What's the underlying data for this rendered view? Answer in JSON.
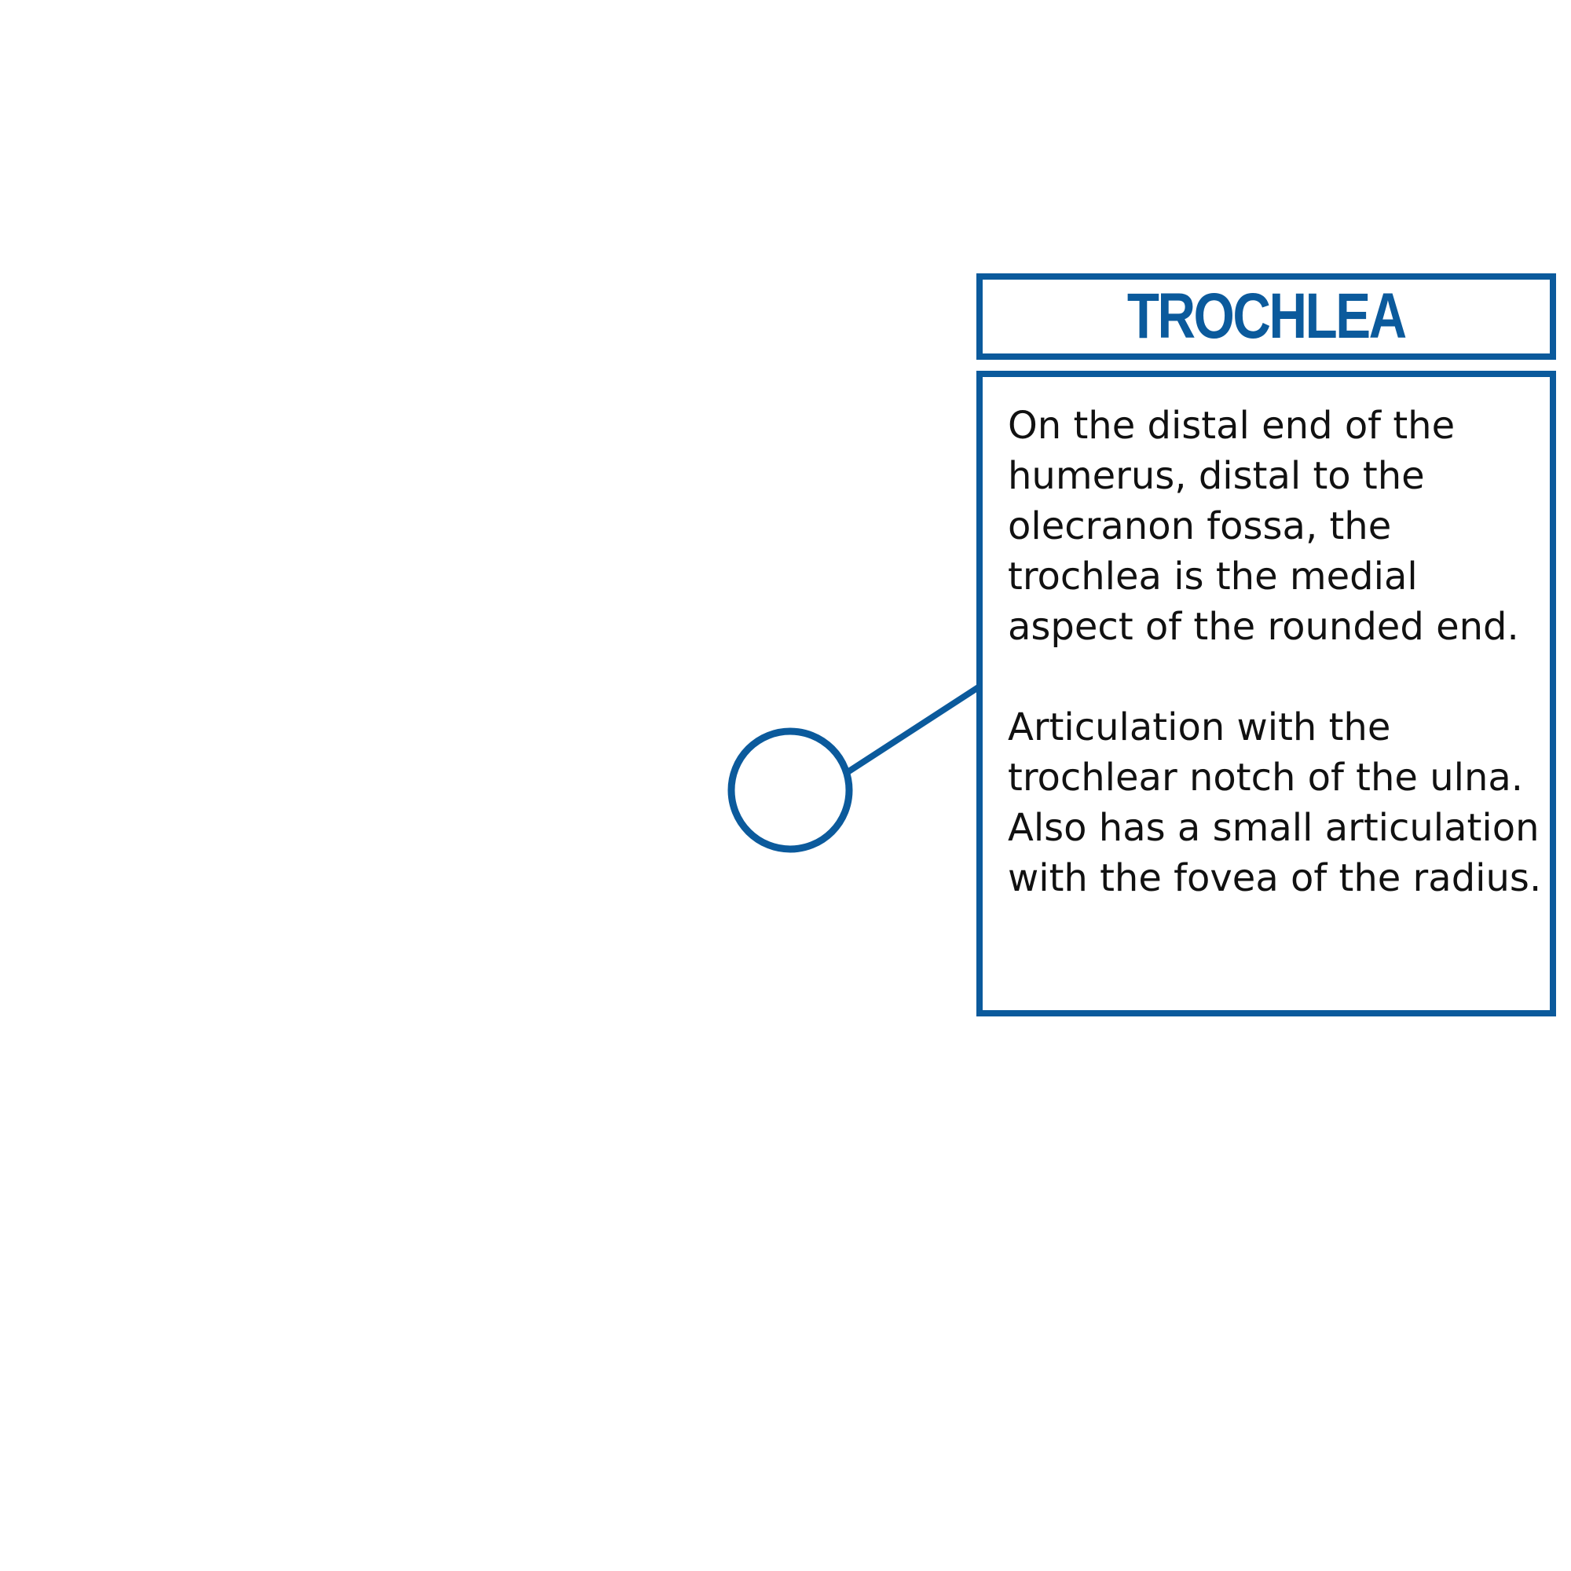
{
  "callout": {
    "title": "TROCHLEA",
    "paragraphs": [
      "On the distal end of the humerus, distal to the olecranon fossa, the trochlea is the medial aspect of the rounded end.",
      "Articulation with the trochlear notch of the ulna. Also has a small articulation with the fovea of the radius."
    ]
  },
  "colors": {
    "accent": "#0b5a9c",
    "text": "#111111",
    "background": "#ffffff"
  }
}
